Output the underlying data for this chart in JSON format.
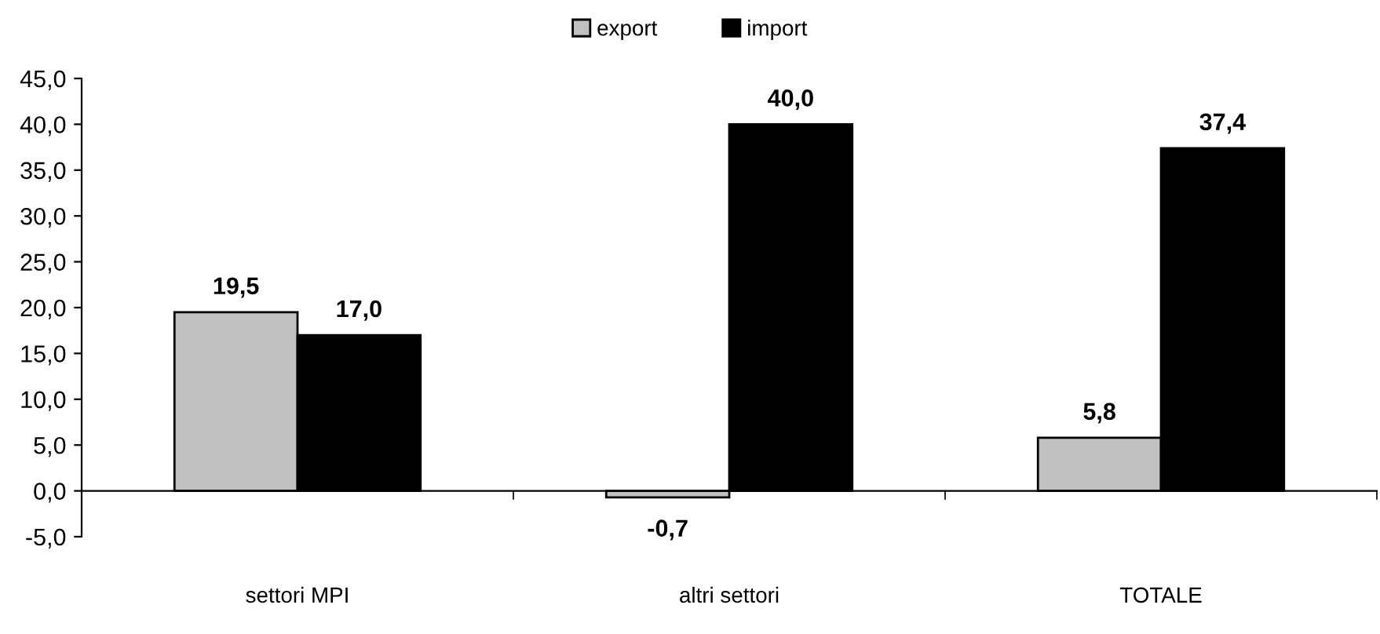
{
  "chart_data": {
    "type": "bar",
    "categories": [
      "settori MPI",
      "altri settori",
      "TOTALE"
    ],
    "series": [
      {
        "name": "export",
        "color": "#c0c0c0",
        "values": [
          19.5,
          -0.7,
          5.8
        ],
        "value_labels": [
          "19,5",
          "-0,7",
          "5,8"
        ]
      },
      {
        "name": "import",
        "color": "#000000",
        "values": [
          17.0,
          40.0,
          37.4
        ],
        "value_labels": [
          "17,0",
          "40,0",
          "37,4"
        ]
      }
    ],
    "ylim": [
      -5,
      45
    ],
    "yticks": [
      {
        "value": -5,
        "label": "-5,0"
      },
      {
        "value": 0,
        "label": "0,0"
      },
      {
        "value": 5,
        "label": "5,0"
      },
      {
        "value": 10,
        "label": "10,0"
      },
      {
        "value": 15,
        "label": "15,0"
      },
      {
        "value": 20,
        "label": "20,0"
      },
      {
        "value": 25,
        "label": "25,0"
      },
      {
        "value": 30,
        "label": "30,0"
      },
      {
        "value": 35,
        "label": "35,0"
      },
      {
        "value": 40,
        "label": "40,0"
      },
      {
        "value": 45,
        "label": "45,0"
      }
    ],
    "legend": "top"
  }
}
